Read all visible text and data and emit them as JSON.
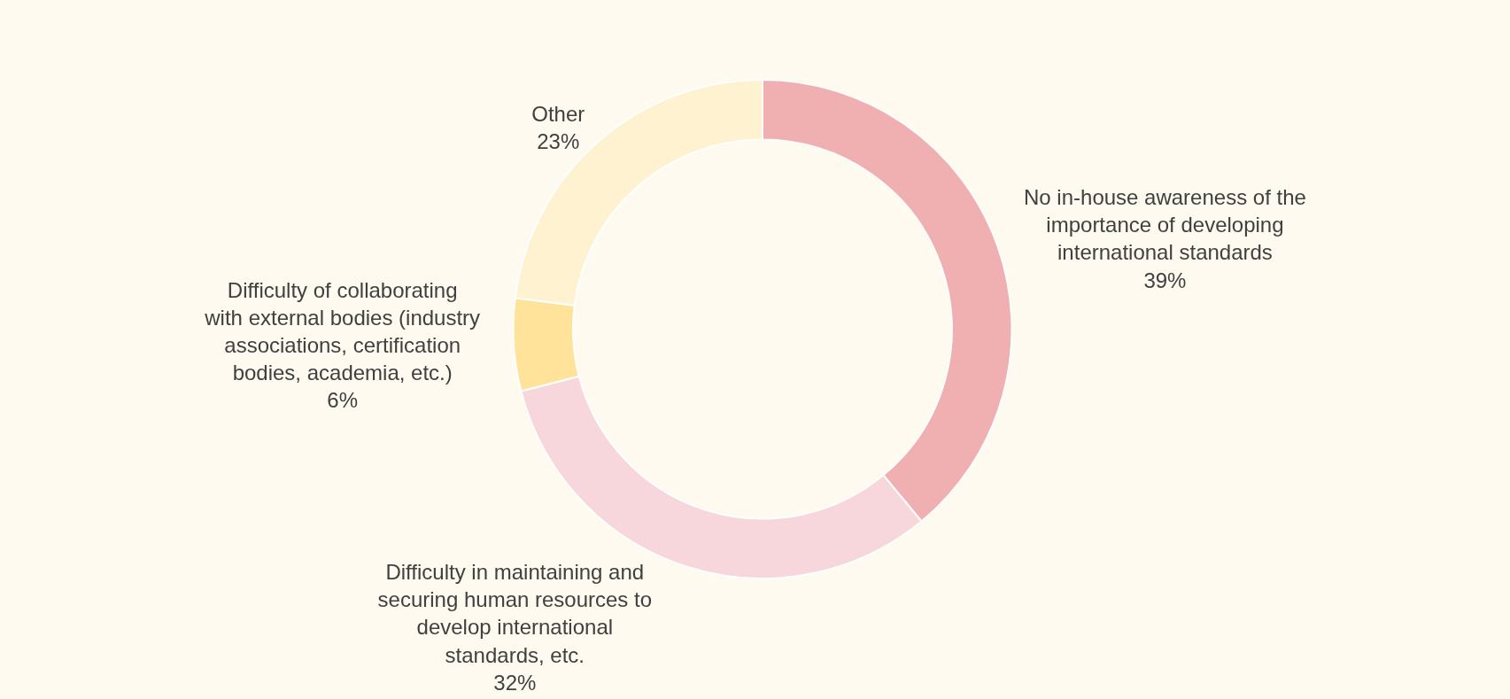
{
  "chart_data": {
    "type": "donut",
    "categories": [
      "No in-house awareness of the importance of developing international standards",
      "Difficulty in maintaining and securing human resources to develop international standards, etc.",
      "Difficulty of collaborating with external bodies (industry associations, certification bodies, academia, etc.)",
      "Other"
    ],
    "values": [
      39,
      32,
      6,
      23
    ],
    "value_labels": [
      "39%",
      "32%",
      "6%",
      "23%"
    ],
    "colors": [
      "#f0b0b2",
      "#f7d6dc",
      "#ffe39a",
      "#fff2d0"
    ],
    "legend": false
  }
}
